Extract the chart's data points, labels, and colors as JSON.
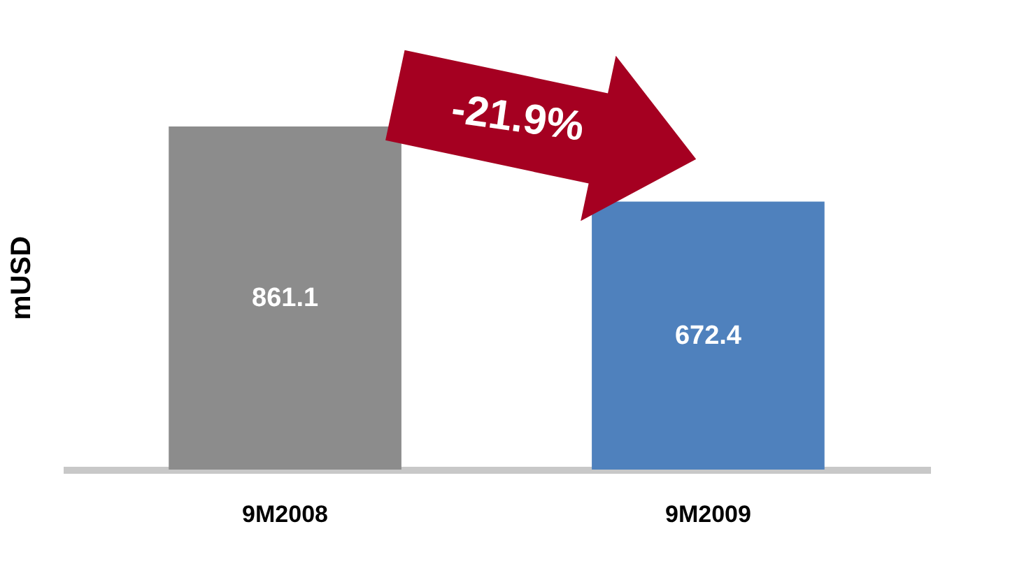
{
  "chart_data": {
    "type": "bar",
    "ylabel": "mUSD",
    "categories": [
      "9M2008",
      "9M2009"
    ],
    "values": [
      861.1,
      672.4
    ],
    "colors": [
      "#8c8c8c",
      "#4f81bd"
    ],
    "data_labels": true,
    "tick_labels": "x",
    "grid": false,
    "annotations": [
      "-21.9%"
    ]
  }
}
